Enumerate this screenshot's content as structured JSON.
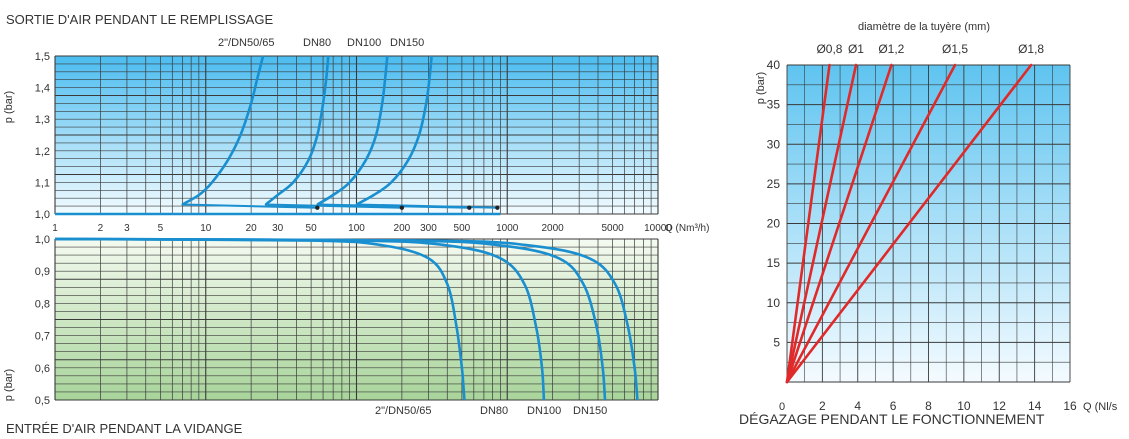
{
  "colors": {
    "curve_left": "#1a8fd0",
    "curve_right": "#e02a2a",
    "grid": "#3a3a3a",
    "text": "#333333"
  },
  "chart_data": [
    {
      "id": "sortie",
      "type": "line",
      "title": "SORTIE D'AIR PENDANT LE REMPLISSAGE",
      "ylabel": "p (bar)",
      "xscale": "log",
      "xlim": [
        1,
        10000
      ],
      "ylim": [
        1.0,
        1.5
      ],
      "yticks": [
        "1,0",
        "1,1",
        "1,2",
        "1,3",
        "1,4",
        "1,5"
      ],
      "series": [
        {
          "name": "2\"/DN50/65",
          "x": [
            7,
            9,
            11,
            14,
            17,
            20,
            22,
            24
          ],
          "y": [
            1.03,
            1.06,
            1.1,
            1.17,
            1.25,
            1.35,
            1.43,
            1.5
          ]
        },
        {
          "name": "DN80",
          "x": [
            25,
            30,
            38,
            48,
            55,
            60,
            63,
            65
          ],
          "y": [
            1.03,
            1.06,
            1.1,
            1.17,
            1.25,
            1.35,
            1.43,
            1.5
          ]
        },
        {
          "name": "DN100",
          "x": [
            55,
            70,
            90,
            115,
            135,
            148,
            155,
            160
          ],
          "y": [
            1.03,
            1.06,
            1.1,
            1.17,
            1.25,
            1.35,
            1.43,
            1.5
          ]
        },
        {
          "name": "DN150",
          "x": [
            100,
            130,
            170,
            220,
            260,
            290,
            305,
            315
          ],
          "y": [
            1.03,
            1.06,
            1.1,
            1.17,
            1.25,
            1.35,
            1.43,
            1.5
          ]
        }
      ],
      "traverses": [
        {
          "x": [
            7,
            55
          ],
          "y": [
            1.03,
            1.02
          ]
        },
        {
          "x": [
            25,
            200
          ],
          "y": [
            1.03,
            1.02
          ]
        },
        {
          "x": [
            55,
            560
          ],
          "y": [
            1.03,
            1.02
          ]
        },
        {
          "x": [
            100,
            860
          ],
          "y": [
            1.03,
            1.02
          ]
        }
      ],
      "markers": [
        {
          "x": 55,
          "y": 1.02
        },
        {
          "x": 200,
          "y": 1.02
        },
        {
          "x": 560,
          "y": 1.02
        },
        {
          "x": 860,
          "y": 1.02
        }
      ]
    },
    {
      "id": "entree",
      "type": "line",
      "title": "ENTRÉE D'AIR PENDANT LA VIDANGE",
      "ylabel": "p (bar)",
      "xlabel": "Q (Nm³/h)",
      "xscale": "log",
      "xlim": [
        1,
        10000
      ],
      "ylim": [
        0.5,
        1.0
      ],
      "xticks": [
        "1",
        "2",
        "3",
        "5",
        "10",
        "20",
        "30",
        "50",
        "100",
        "200",
        "300",
        "500",
        "1000",
        "2000",
        "5000",
        "10000"
      ],
      "xtick_values": [
        1,
        2,
        3,
        5,
        10,
        20,
        30,
        50,
        100,
        200,
        300,
        500,
        1000,
        2000,
        5000,
        10000
      ],
      "yticks": [
        "0,5",
        "0,6",
        "0,7",
        "0,8",
        "0,9",
        "1,0"
      ],
      "series": [
        {
          "name": "2\"/DN50/65",
          "x": [
            1,
            50,
            150,
            300,
            400,
            460,
            500,
            520
          ],
          "y": [
            1.0,
            0.995,
            0.98,
            0.94,
            0.86,
            0.73,
            0.6,
            0.5
          ]
        },
        {
          "name": "DN80",
          "x": [
            1,
            100,
            400,
            900,
            1300,
            1550,
            1700,
            1750
          ],
          "y": [
            1.0,
            0.995,
            0.98,
            0.94,
            0.86,
            0.73,
            0.6,
            0.5
          ]
        },
        {
          "name": "DN100",
          "x": [
            1,
            200,
            900,
            2200,
            3200,
            3900,
            4300,
            4450
          ],
          "y": [
            1.0,
            0.995,
            0.98,
            0.94,
            0.86,
            0.73,
            0.6,
            0.5
          ]
        },
        {
          "name": "DN150",
          "x": [
            1,
            300,
            1400,
            3500,
            5200,
            6300,
            7000,
            7300
          ],
          "y": [
            1.0,
            0.995,
            0.98,
            0.94,
            0.86,
            0.73,
            0.6,
            0.5
          ]
        }
      ]
    },
    {
      "id": "degazage",
      "type": "line",
      "title": "DÉGAZAGE PENDANT LE FONCTIONNEMENT",
      "top_label": "diamètre de la tuyère (mm)",
      "ylabel": "p (bar)",
      "xlabel": "Q (Nl/s",
      "xlim": [
        0,
        16
      ],
      "ylim": [
        0,
        40
      ],
      "xticks": [
        "2",
        "4",
        "6",
        "8",
        "10",
        "12",
        "14",
        "16"
      ],
      "xtick_values": [
        2,
        4,
        6,
        8,
        10,
        12,
        14,
        16
      ],
      "yticks": [
        "5",
        "10",
        "15",
        "20",
        "25",
        "30",
        "35",
        "40"
      ],
      "ytick_values": [
        5,
        10,
        15,
        20,
        25,
        30,
        35,
        40
      ],
      "series": [
        {
          "name": "Ø0,8",
          "x": [
            0,
            2.4
          ],
          "y": [
            0,
            40
          ]
        },
        {
          "name": "Ø1",
          "x": [
            0,
            3.9
          ],
          "y": [
            0,
            40
          ]
        },
        {
          "name": "Ø1,2",
          "x": [
            0,
            5.9
          ],
          "y": [
            0,
            40
          ]
        },
        {
          "name": "Ø1,5",
          "x": [
            0,
            9.5
          ],
          "y": [
            0,
            40
          ]
        },
        {
          "name": "Ø1,8",
          "x": [
            0,
            13.8
          ],
          "y": [
            0,
            40
          ]
        }
      ]
    }
  ],
  "labels": {
    "left_top_series": [
      "2\"/DN50/65",
      "DN80",
      "DN100",
      "DN150"
    ],
    "left_bottom_series": [
      "2\"/DN50/65",
      "DN80",
      "DN100",
      "DN150"
    ],
    "right_top_series": [
      "Ø0,8",
      "Ø1",
      "Ø1,2",
      "Ø1,5",
      "Ø1,8"
    ],
    "right_origin": "0"
  }
}
